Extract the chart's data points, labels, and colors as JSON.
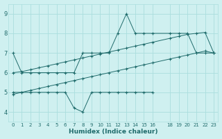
{
  "xlabel": "Humidex (Indice chaleur)",
  "xlim": [
    -0.5,
    23.5
  ],
  "ylim": [
    3.5,
    9.5
  ],
  "yticks": [
    4,
    5,
    6,
    7,
    8,
    9
  ],
  "xtick_positions": [
    0,
    1,
    2,
    3,
    4,
    5,
    6,
    7,
    8,
    9,
    10,
    11,
    12,
    13,
    14,
    15,
    16,
    18,
    19,
    20,
    21,
    22,
    23
  ],
  "xtick_labels": [
    "0",
    "1",
    "2",
    "3",
    "4",
    "5",
    "6",
    "7",
    "8",
    "9",
    "10",
    "11",
    "12",
    "13",
    "14",
    "15",
    "16",
    "18",
    "19",
    "20",
    "21",
    "22",
    "23"
  ],
  "bg_color": "#cff0f0",
  "line_color": "#1f6b6b",
  "grid_color": "#aadede",
  "upper_jagged": {
    "x": [
      0,
      1,
      2,
      3,
      4,
      5,
      6,
      7,
      8,
      9,
      10,
      11,
      12,
      13,
      14,
      15,
      16,
      18,
      19,
      20,
      21,
      22,
      23
    ],
    "y": [
      7.0,
      6.0,
      6.0,
      6.0,
      6.0,
      6.0,
      6.0,
      6.0,
      7.0,
      7.0,
      7.0,
      7.0,
      8.0,
      9.0,
      8.0,
      8.0,
      8.0,
      8.0,
      8.0,
      8.0,
      7.0,
      7.0,
      7.0
    ]
  },
  "upper_diag": {
    "x": [
      0,
      1,
      2,
      3,
      4,
      5,
      6,
      7,
      8,
      9,
      10,
      11,
      12,
      13,
      14,
      15,
      16,
      18,
      19,
      20,
      21,
      22,
      23
    ],
    "y": [
      6.0,
      6.05,
      6.15,
      6.25,
      6.35,
      6.45,
      6.55,
      6.65,
      6.75,
      6.85,
      6.95,
      7.05,
      7.15,
      7.25,
      7.35,
      7.45,
      7.55,
      7.75,
      7.85,
      7.95,
      8.0,
      8.05,
      7.0
    ]
  },
  "lower_diag": {
    "x": [
      0,
      1,
      2,
      3,
      4,
      5,
      6,
      7,
      8,
      9,
      10,
      11,
      12,
      13,
      14,
      15,
      16,
      18,
      19,
      20,
      21,
      22,
      23
    ],
    "y": [
      4.9,
      5.0,
      5.1,
      5.2,
      5.3,
      5.4,
      5.5,
      5.6,
      5.7,
      5.8,
      5.9,
      6.0,
      6.1,
      6.2,
      6.3,
      6.4,
      6.5,
      6.7,
      6.8,
      6.9,
      7.0,
      7.1,
      7.0
    ]
  },
  "bottom_jagged": {
    "x": [
      0,
      1,
      2,
      3,
      4,
      5,
      6,
      7,
      8,
      9,
      10,
      11,
      12,
      13,
      14,
      15,
      16
    ],
    "y": [
      5.0,
      5.0,
      5.0,
      5.0,
      5.0,
      5.0,
      5.0,
      4.2,
      4.0,
      5.0,
      5.0,
      5.0,
      5.0,
      5.0,
      5.0,
      5.0,
      5.0
    ]
  }
}
